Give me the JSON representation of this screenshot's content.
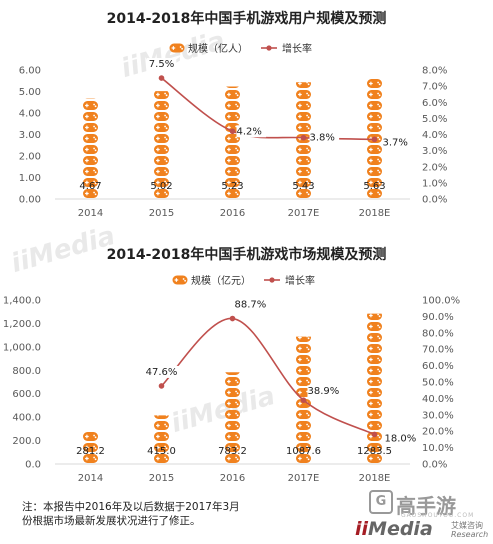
{
  "colors": {
    "bar": "#f0811e",
    "line": "#c0504d",
    "axis_text": "#595959",
    "grid": "#d9d9d9"
  },
  "chart_data": [
    {
      "type": "bar",
      "title": "2014-2018年中国手机游戏用户规模及预测",
      "categories": [
        "2014",
        "2015",
        "2016",
        "2017E",
        "2018E"
      ],
      "series": [
        {
          "name": "规模（亿人）",
          "type": "bar",
          "values": [
            4.67,
            5.02,
            5.23,
            5.43,
            5.63
          ],
          "labels": [
            "4.67",
            "5.02",
            "5.23",
            "5.43",
            "5.63"
          ],
          "color": "#f0811e"
        },
        {
          "name": "增长率",
          "type": "line",
          "axis": "right",
          "values": [
            null,
            7.5,
            4.2,
            3.8,
            3.7
          ],
          "labels": [
            "",
            "7.5%",
            "4.2%",
            "3.8%",
            "3.7%"
          ],
          "color": "#c0504d"
        }
      ],
      "ylim": [
        0,
        6
      ],
      "yticks": [
        "0.00",
        "1.00",
        "2.00",
        "3.00",
        "4.00",
        "5.00",
        "6.00"
      ],
      "y2lim": [
        0,
        8
      ],
      "y2ticks": [
        "0.0%",
        "1.0%",
        "2.0%",
        "3.0%",
        "4.0%",
        "5.0%",
        "6.0%",
        "7.0%",
        "8.0%"
      ],
      "legend": "top",
      "grid": false
    },
    {
      "type": "bar",
      "title": "2014-2018年中国手机游戏市场规模及预测",
      "categories": [
        "2014",
        "2015",
        "2016",
        "2017E",
        "2018E"
      ],
      "series": [
        {
          "name": "规模（亿元）",
          "type": "bar",
          "values": [
            281.2,
            415.0,
            783.2,
            1087.6,
            1283.5
          ],
          "labels": [
            "281.2",
            "415.0",
            "783.2",
            "1087.6",
            "1283.5"
          ],
          "color": "#f0811e"
        },
        {
          "name": "增长率",
          "type": "line",
          "axis": "right",
          "values": [
            null,
            47.6,
            88.7,
            38.9,
            18.0
          ],
          "labels": [
            "",
            "47.6%",
            "88.7%",
            "38.9%",
            "18.0%"
          ],
          "color": "#c0504d"
        }
      ],
      "ylim": [
        0,
        1400
      ],
      "yticks": [
        "0.0",
        "200.0",
        "400.0",
        "600.0",
        "800.0",
        "1,000.0",
        "1,200.0",
        "1,400.0"
      ],
      "y2lim": [
        0,
        100
      ],
      "y2ticks": [
        "0.0%",
        "10.0%",
        "20.0%",
        "30.0%",
        "40.0%",
        "50.0%",
        "60.0%",
        "70.0%",
        "80.0%",
        "90.0%",
        "100.0%"
      ],
      "legend": "top",
      "grid": false
    }
  ],
  "note": {
    "line1": "注：本报告中2016年及以后数据于2017年3月",
    "line2": "份根据市场最新发展状况进行了修正。"
  },
  "watermark": {
    "text1": "iiMedia",
    "text2": "iiMedia",
    "text3": "iiMedia"
  },
  "brand": {
    "logo_mark": "G",
    "logo_text": "高手游",
    "url": "GAOSHOUYOU.COM",
    "media_prefix": "ii",
    "media_word": "Media",
    "cn_name": "艾媒咨询",
    "research": "Research"
  }
}
